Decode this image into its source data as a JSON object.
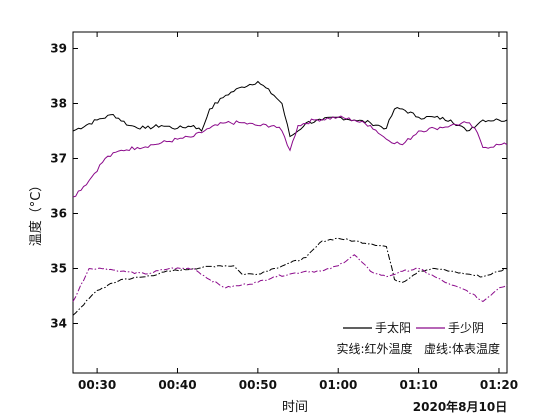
{
  "chart_data": {
    "type": "line",
    "xlabel": "时间",
    "ylabel": "温度（°C）",
    "date_label": "2020年8月10日",
    "legend": {
      "placement": "bottom-right",
      "items": [
        "手太阳",
        "手少阴"
      ],
      "note": "实线:红外温度   虚线:体表温度"
    },
    "xlim": [
      "00:27",
      "01:21"
    ],
    "ylim": [
      33.1,
      39.3
    ],
    "x_ticks": [
      "00:30",
      "00:40",
      "00:50",
      "01:00",
      "01:10",
      "01:20"
    ],
    "y_ticks": [
      34,
      35,
      36,
      37,
      38,
      39
    ],
    "colors": {
      "手太阳": "#000000",
      "手少阴": "#8b0a8b"
    },
    "series": [
      {
        "name": "手太阳",
        "line_style": "solid",
        "x": [
          "00:27",
          "00:30",
          "00:32",
          "00:34",
          "00:36",
          "00:38",
          "00:40",
          "00:42",
          "00:43",
          "00:44",
          "00:46",
          "00:48",
          "00:50",
          "00:52",
          "00:53",
          "00:54",
          "00:55",
          "00:56",
          "00:58",
          "01:00",
          "01:02",
          "01:04",
          "01:06",
          "01:07",
          "01:08",
          "01:10",
          "01:12",
          "01:14",
          "01:16",
          "01:18",
          "01:20",
          "01:21"
        ],
        "values": [
          37.5,
          37.7,
          37.8,
          37.6,
          37.55,
          37.6,
          37.55,
          37.6,
          37.5,
          37.9,
          38.15,
          38.3,
          38.4,
          38.15,
          38.0,
          37.4,
          37.5,
          37.65,
          37.7,
          37.75,
          37.7,
          37.65,
          37.55,
          37.9,
          37.9,
          37.75,
          37.75,
          37.7,
          37.5,
          37.7,
          37.7,
          37.7
        ]
      },
      {
        "name": "手少阴",
        "line_style": "solid",
        "x": [
          "00:27",
          "00:29",
          "00:31",
          "00:33",
          "00:35",
          "00:37",
          "00:40",
          "00:42",
          "00:44",
          "00:46",
          "00:48",
          "00:50",
          "00:52",
          "00:53",
          "00:54",
          "00:55",
          "00:57",
          "01:00",
          "01:02",
          "01:04",
          "01:06",
          "01:08",
          "01:10",
          "01:12",
          "01:14",
          "01:16",
          "01:17",
          "01:18",
          "01:20",
          "01:21"
        ],
        "values": [
          36.3,
          36.6,
          37.0,
          37.15,
          37.2,
          37.25,
          37.35,
          37.4,
          37.55,
          37.65,
          37.65,
          37.6,
          37.6,
          37.5,
          37.15,
          37.6,
          37.7,
          37.75,
          37.7,
          37.6,
          37.35,
          37.25,
          37.5,
          37.55,
          37.6,
          37.65,
          37.55,
          37.2,
          37.25,
          37.25
        ]
      },
      {
        "name": "手太阳",
        "line_style": "dashed",
        "x": [
          "00:27",
          "00:30",
          "00:33",
          "00:36",
          "00:39",
          "00:42",
          "00:45",
          "00:47",
          "00:48",
          "00:50",
          "00:52",
          "00:54",
          "00:56",
          "00:58",
          "01:00",
          "01:02",
          "01:04",
          "01:06",
          "01:07",
          "01:08",
          "01:10",
          "01:12",
          "01:14",
          "01:16",
          "01:18",
          "01:20",
          "01:21"
        ],
        "values": [
          34.15,
          34.6,
          34.8,
          34.85,
          34.95,
          35.0,
          35.05,
          35.05,
          34.9,
          34.9,
          35.0,
          35.1,
          35.2,
          35.5,
          35.55,
          35.5,
          35.45,
          35.4,
          34.8,
          34.75,
          34.95,
          35.0,
          34.95,
          34.9,
          34.85,
          34.95,
          35.0
        ]
      },
      {
        "name": "手少阴",
        "line_style": "dashed",
        "x": [
          "00:27",
          "00:29",
          "00:31",
          "00:33",
          "00:36",
          "00:39",
          "00:42",
          "00:44",
          "00:46",
          "00:48",
          "00:50",
          "00:52",
          "00:54",
          "00:56",
          "00:58",
          "01:00",
          "01:02",
          "01:04",
          "01:06",
          "01:08",
          "01:10",
          "01:12",
          "01:14",
          "01:16",
          "01:18",
          "01:20",
          "01:21"
        ],
        "values": [
          34.4,
          35.0,
          35.0,
          34.95,
          34.9,
          35.0,
          35.0,
          34.8,
          34.65,
          34.7,
          34.75,
          34.85,
          34.9,
          34.95,
          34.95,
          35.05,
          35.25,
          34.95,
          34.85,
          34.95,
          35.0,
          34.85,
          34.7,
          34.6,
          34.4,
          34.65,
          34.7
        ]
      }
    ]
  }
}
